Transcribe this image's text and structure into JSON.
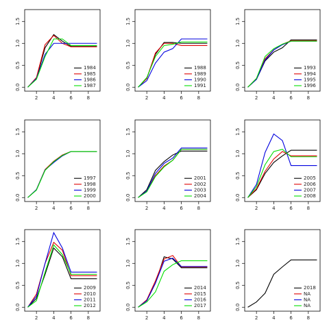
{
  "chart_data": [
    {
      "type": "line",
      "x": [
        1,
        2,
        3,
        4,
        5,
        6,
        7,
        8,
        9
      ],
      "xlim": [
        0.64,
        9.36
      ],
      "ylim": [
        -0.09,
        1.77
      ],
      "xticks": [
        2,
        4,
        6,
        8
      ],
      "yticks": [
        {
          "value": 0,
          "label": "0.0"
        },
        0.5,
        {
          "value": 1,
          "label": "1.0"
        },
        1.5
      ],
      "legend": "bottom-right",
      "series": [
        {
          "name": "1984",
          "color": "#000000",
          "values": [
            0,
            0.2,
            0.9,
            1.2,
            1.05,
            0.93,
            0.93,
            0.93,
            0.93
          ]
        },
        {
          "name": "1985",
          "color": "#df0000",
          "values": [
            0,
            0.22,
            0.97,
            1.18,
            1.0,
            0.92,
            0.92,
            0.92,
            0.92
          ]
        },
        {
          "name": "1986",
          "color": "#0000df",
          "values": [
            0,
            0.2,
            0.75,
            1.0,
            1.0,
            1.0,
            1.0,
            1.0,
            1.0
          ]
        },
        {
          "name": "1987",
          "color": "#00df00",
          "values": [
            0,
            0.18,
            0.7,
            1.1,
            1.1,
            0.95,
            0.95,
            0.95,
            0.95
          ]
        }
      ]
    },
    {
      "type": "line",
      "x": [
        1,
        2,
        3,
        4,
        5,
        6,
        7,
        8,
        9
      ],
      "xlim": [
        0.64,
        9.36
      ],
      "ylim": [
        -0.09,
        1.77
      ],
      "xticks": [
        2,
        4,
        6,
        8
      ],
      "yticks": [
        {
          "value": 0,
          "label": "0.0"
        },
        0.5,
        {
          "value": 1,
          "label": "1.0"
        },
        1.5
      ],
      "legend": "bottom-right",
      "series": [
        {
          "name": "1988",
          "color": "#000000",
          "values": [
            0,
            0.2,
            0.75,
            1.02,
            1.02,
            1.0,
            1.0,
            1.0,
            1.0
          ]
        },
        {
          "name": "1989",
          "color": "#df0000",
          "values": [
            0,
            0.2,
            0.78,
            1.0,
            1.0,
            0.95,
            0.95,
            0.95,
            0.95
          ]
        },
        {
          "name": "1990",
          "color": "#0000df",
          "values": [
            0,
            0.15,
            0.55,
            0.8,
            0.88,
            1.1,
            1.1,
            1.1,
            1.1
          ]
        },
        {
          "name": "1991",
          "color": "#00df00",
          "values": [
            0,
            0.22,
            0.7,
            0.95,
            0.98,
            1.03,
            1.03,
            1.03,
            1.03
          ]
        }
      ]
    },
    {
      "type": "line",
      "x": [
        1,
        2,
        3,
        4,
        5,
        6,
        7,
        8,
        9
      ],
      "xlim": [
        0.64,
        9.36
      ],
      "ylim": [
        -0.09,
        1.77
      ],
      "xticks": [
        2,
        4,
        6,
        8
      ],
      "yticks": [
        {
          "value": 0,
          "label": "0.0"
        },
        0.5,
        {
          "value": 1,
          "label": "1.0"
        },
        1.5
      ],
      "legend": "bottom-right",
      "series": [
        {
          "name": "1993",
          "color": "#000000",
          "values": [
            0,
            0.18,
            0.6,
            0.8,
            0.9,
            1.08,
            1.08,
            1.08,
            1.08
          ]
        },
        {
          "name": "1994",
          "color": "#df0000",
          "values": [
            0,
            0.2,
            0.65,
            0.85,
            0.98,
            1.06,
            1.06,
            1.06,
            1.06
          ]
        },
        {
          "name": "1995",
          "color": "#0000df",
          "values": [
            0,
            0.18,
            0.62,
            0.85,
            0.97,
            1.05,
            1.05,
            1.05,
            1.05
          ]
        },
        {
          "name": "1996",
          "color": "#00df00",
          "values": [
            0,
            0.2,
            0.7,
            0.88,
            0.98,
            1.05,
            1.05,
            1.05,
            1.05
          ]
        }
      ]
    },
    {
      "type": "line",
      "x": [
        1,
        2,
        3,
        4,
        5,
        6,
        7,
        8,
        9
      ],
      "xlim": [
        0.64,
        9.36
      ],
      "ylim": [
        -0.09,
        1.77
      ],
      "xticks": [
        2,
        4,
        6,
        8
      ],
      "yticks": [
        {
          "value": 0,
          "label": "0.0"
        },
        0.5,
        {
          "value": 1,
          "label": "1.0"
        },
        1.5
      ],
      "legend": "bottom-right",
      "series": [
        {
          "name": "1997",
          "color": "#000000",
          "values": [
            0,
            0.18,
            0.63,
            0.82,
            0.97,
            1.05,
            1.05,
            1.05,
            1.05
          ]
        },
        {
          "name": "1998",
          "color": "#df0000",
          "values": [
            0,
            0.18,
            0.64,
            0.83,
            0.97,
            1.05,
            1.05,
            1.05,
            1.05
          ]
        },
        {
          "name": "1999",
          "color": "#0000df",
          "values": [
            0,
            0.18,
            0.63,
            0.8,
            0.95,
            1.05,
            1.05,
            1.05,
            1.05
          ]
        },
        {
          "name": "2000",
          "color": "#00df00",
          "values": [
            0,
            0.17,
            0.62,
            0.82,
            0.96,
            1.05,
            1.05,
            1.05,
            1.05
          ]
        }
      ]
    },
    {
      "type": "line",
      "x": [
        1,
        2,
        3,
        4,
        5,
        6,
        7,
        8,
        9
      ],
      "xlim": [
        0.64,
        9.36
      ],
      "ylim": [
        -0.09,
        1.77
      ],
      "xticks": [
        2,
        4,
        6,
        8
      ],
      "yticks": [
        {
          "value": 0,
          "label": "0.0"
        },
        0.5,
        {
          "value": 1,
          "label": "1.0"
        },
        1.5
      ],
      "legend": "bottom-right",
      "series": [
        {
          "name": "2001",
          "color": "#000000",
          "values": [
            0,
            0.18,
            0.62,
            0.82,
            0.97,
            1.06,
            1.06,
            1.06,
            1.06
          ]
        },
        {
          "name": "2002",
          "color": "#df0000",
          "values": [
            0,
            0.15,
            0.5,
            0.72,
            0.85,
            1.1,
            1.1,
            1.1,
            1.1
          ]
        },
        {
          "name": "2003",
          "color": "#0000df",
          "values": [
            0,
            0.15,
            0.55,
            0.78,
            0.9,
            1.13,
            1.13,
            1.13,
            1.13
          ]
        },
        {
          "name": "2004",
          "color": "#00df00",
          "values": [
            0,
            0.13,
            0.48,
            0.7,
            0.85,
            1.1,
            1.1,
            1.1,
            1.1
          ]
        }
      ]
    },
    {
      "type": "line",
      "x": [
        1,
        2,
        3,
        4,
        5,
        6,
        7,
        8,
        9
      ],
      "xlim": [
        0.64,
        9.36
      ],
      "ylim": [
        -0.09,
        1.77
      ],
      "xticks": [
        2,
        4,
        6,
        8
      ],
      "yticks": [
        {
          "value": 0,
          "label": "0.0"
        },
        0.5,
        {
          "value": 1,
          "label": "1.0"
        },
        1.5
      ],
      "legend": "bottom-right",
      "series": [
        {
          "name": "2005",
          "color": "#000000",
          "values": [
            0,
            0.18,
            0.55,
            0.8,
            0.95,
            1.08,
            1.08,
            1.08,
            1.08
          ]
        },
        {
          "name": "2006",
          "color": "#df0000",
          "values": [
            0,
            0.2,
            0.6,
            0.88,
            1.05,
            0.95,
            0.95,
            0.95,
            0.95
          ]
        },
        {
          "name": "2007",
          "color": "#0000df",
          "values": [
            0,
            0.3,
            1.03,
            1.45,
            1.3,
            0.73,
            0.73,
            0.73,
            0.73
          ]
        },
        {
          "name": "2008",
          "color": "#00df00",
          "values": [
            0,
            0.25,
            0.75,
            1.05,
            1.1,
            0.93,
            0.93,
            0.93,
            0.93
          ]
        }
      ]
    },
    {
      "type": "line",
      "x": [
        1,
        2,
        3,
        4,
        5,
        6,
        7,
        8,
        9
      ],
      "xlim": [
        0.64,
        9.36
      ],
      "ylim": [
        -0.09,
        1.77
      ],
      "xticks": [
        2,
        4,
        6,
        8
      ],
      "yticks": [
        {
          "value": 0,
          "label": "0.0"
        },
        0.5,
        {
          "value": 1,
          "label": "1.0"
        },
        1.5
      ],
      "legend": "bottom-right",
      "series": [
        {
          "name": "2009",
          "color": "#000000",
          "values": [
            0,
            0.2,
            0.75,
            1.35,
            1.15,
            0.65,
            0.65,
            0.65,
            0.65
          ]
        },
        {
          "name": "2010",
          "color": "#df0000",
          "values": [
            0,
            0.3,
            1.0,
            1.48,
            1.3,
            0.72,
            0.72,
            0.72,
            0.72
          ]
        },
        {
          "name": "2011",
          "color": "#0000df",
          "values": [
            0,
            0.25,
            1.0,
            1.7,
            1.35,
            0.8,
            0.8,
            0.8,
            0.8
          ]
        },
        {
          "name": "2012",
          "color": "#00df00",
          "values": [
            0,
            0.15,
            0.8,
            1.42,
            1.2,
            0.75,
            0.75,
            0.75,
            0.75
          ]
        }
      ]
    },
    {
      "type": "line",
      "x": [
        1,
        2,
        3,
        4,
        5,
        6,
        7,
        8,
        9
      ],
      "xlim": [
        0.64,
        9.36
      ],
      "ylim": [
        -0.09,
        1.77
      ],
      "xticks": [
        2,
        4,
        6,
        8
      ],
      "yticks": [
        {
          "value": 0,
          "label": "0.0"
        },
        0.5,
        {
          "value": 1,
          "label": "1.0"
        },
        1.5
      ],
      "legend": "bottom-right",
      "series": [
        {
          "name": "2014",
          "color": "#000000",
          "values": [
            0,
            0.15,
            0.55,
            1.15,
            1.1,
            0.9,
            0.9,
            0.9,
            0.9
          ]
        },
        {
          "name": "2015",
          "color": "#df0000",
          "values": [
            0,
            0.17,
            0.6,
            1.1,
            1.18,
            0.92,
            0.92,
            0.92,
            0.92
          ]
        },
        {
          "name": "2016",
          "color": "#0000df",
          "values": [
            0,
            0.15,
            0.55,
            1.05,
            1.12,
            0.93,
            0.93,
            0.93,
            0.93
          ]
        },
        {
          "name": "2017",
          "color": "#00df00",
          "values": [
            0,
            0.12,
            0.35,
            0.82,
            0.97,
            1.06,
            1.06,
            1.06,
            1.06
          ]
        }
      ]
    },
    {
      "type": "line",
      "x": [
        1,
        2,
        3,
        4,
        5,
        6,
        7,
        8,
        9
      ],
      "xlim": [
        0.64,
        9.36
      ],
      "ylim": [
        -0.09,
        1.77
      ],
      "xticks": [
        2,
        4,
        6,
        8
      ],
      "yticks": [
        {
          "value": 0,
          "label": "0.0"
        },
        0.5,
        {
          "value": 1,
          "label": "1.0"
        },
        1.5
      ],
      "legend": "bottom-right",
      "series": [
        {
          "name": "2018",
          "color": "#000000",
          "values": [
            0,
            0.12,
            0.32,
            0.75,
            0.92,
            1.08,
            1.08,
            1.08,
            1.08
          ]
        },
        {
          "name": "NA",
          "color": "#df0000",
          "values": [
            null,
            null,
            null,
            null,
            null,
            null,
            null,
            null,
            null
          ]
        },
        {
          "name": "NA",
          "color": "#0000df",
          "values": [
            null,
            null,
            null,
            null,
            null,
            null,
            null,
            null,
            null
          ]
        },
        {
          "name": "NA",
          "color": "#00df00",
          "values": [
            null,
            null,
            null,
            null,
            null,
            null,
            null,
            null,
            null
          ]
        }
      ]
    }
  ]
}
